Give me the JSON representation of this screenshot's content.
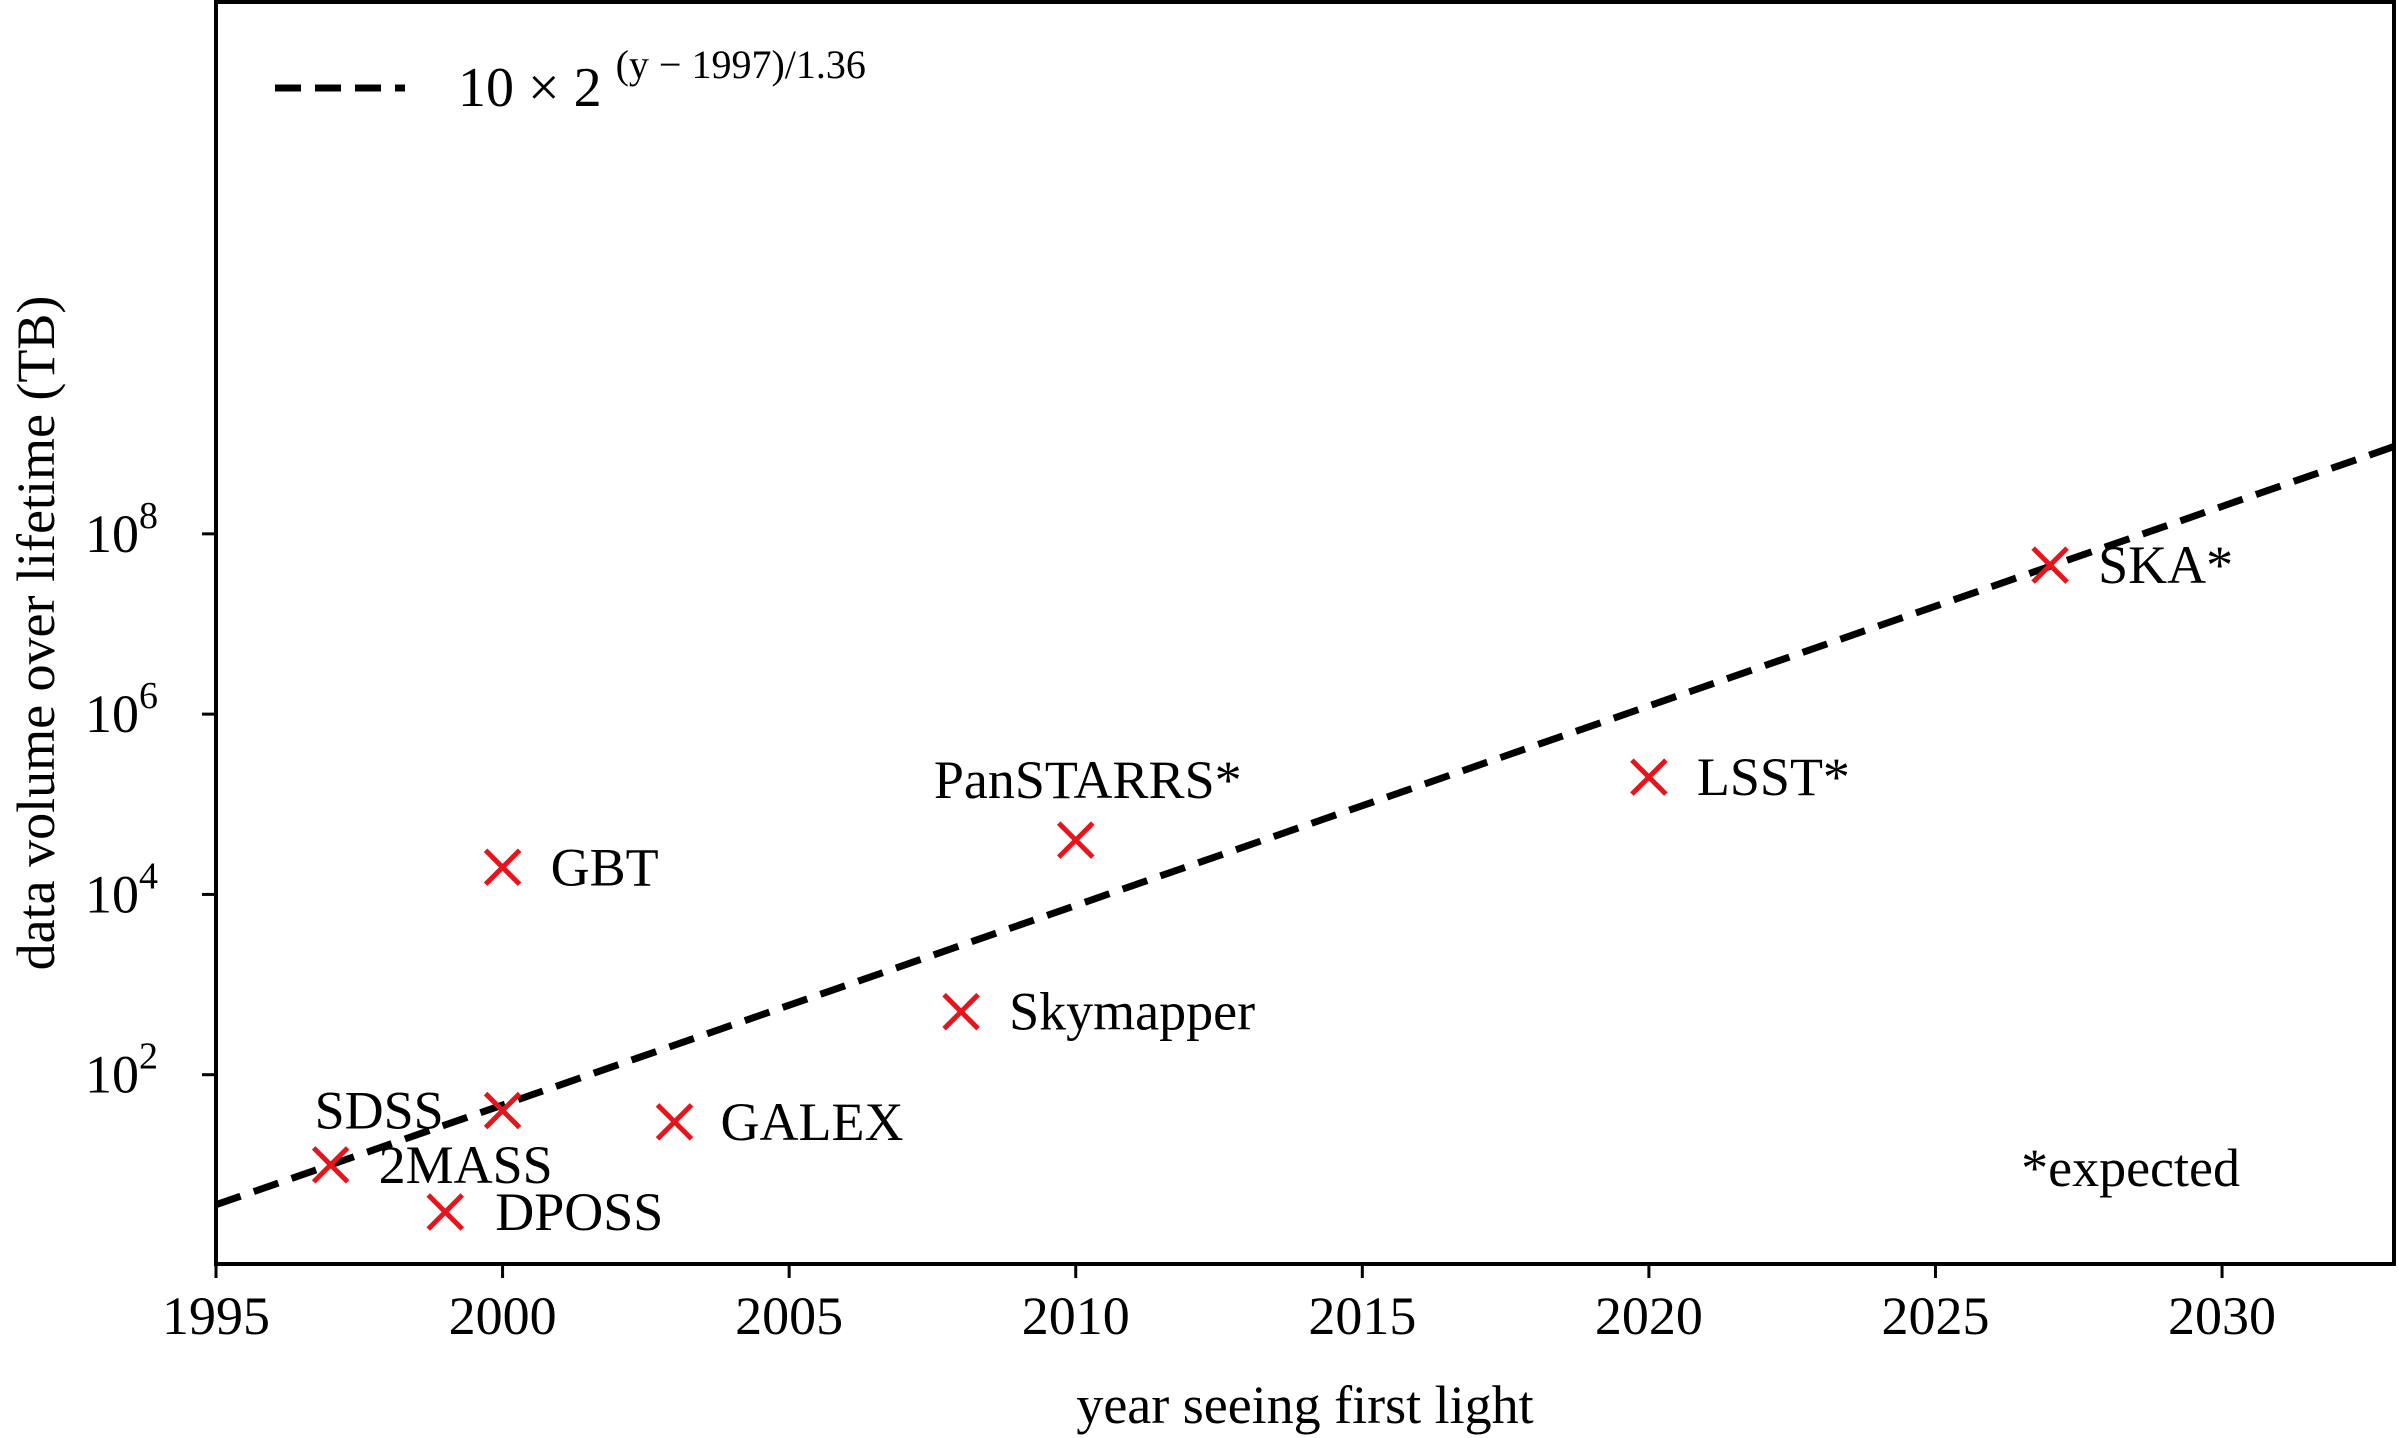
{
  "chart_data": {
    "type": "scatter",
    "title": "",
    "xlabel": "year seeing first light",
    "ylabel": "data volume over lifetime (TB)",
    "xlim": [
      1995,
      2033
    ],
    "ylim_log10": [
      -0.1,
      13.9
    ],
    "y_scale": "log",
    "x_ticks": [
      1995,
      2000,
      2005,
      2010,
      2015,
      2020,
      2025,
      2030
    ],
    "x_tick_labels": [
      "1995",
      "2000",
      "2005",
      "2010",
      "2015",
      "2020",
      "2025",
      "2030"
    ],
    "y_ticks_log10": [
      2,
      4,
      6,
      8
    ],
    "y_tick_labels": [
      {
        "base": "10",
        "exp": "2"
      },
      {
        "base": "10",
        "exp": "4"
      },
      {
        "base": "10",
        "exp": "6"
      },
      {
        "base": "10",
        "exp": "8"
      }
    ],
    "legend": {
      "placement": "top-left",
      "label_main": "10 × 2",
      "label_exponent": "(y − 1997)/1.36"
    },
    "trend_line": {
      "style": "dashed",
      "color": "#000000",
      "formula": "10 × 2^((y − 1997)/1.36)",
      "amplitude": 10,
      "base": 2,
      "offset": 1997,
      "divisor": 1.36
    },
    "marker_color": "#e8141c",
    "points": [
      {
        "name": "2MASS",
        "year": 1997,
        "value": 10
      },
      {
        "name": "DPOSS",
        "year": 1999,
        "value": 3
      },
      {
        "name": "SDSS",
        "year": 2000,
        "value": 40
      },
      {
        "name": "GBT",
        "year": 2000,
        "value": 20000
      },
      {
        "name": "GALEX",
        "year": 2003,
        "value": 30
      },
      {
        "name": "Skymapper",
        "year": 2008,
        "value": 500
      },
      {
        "name": "PanSTARRS*",
        "year": 2010,
        "value": 40000
      },
      {
        "name": "LSST*",
        "year": 2020,
        "value": 200000
      },
      {
        "name": "SKA*",
        "year": 2027,
        "value": 45000000
      }
    ],
    "annotation": "*expected"
  }
}
